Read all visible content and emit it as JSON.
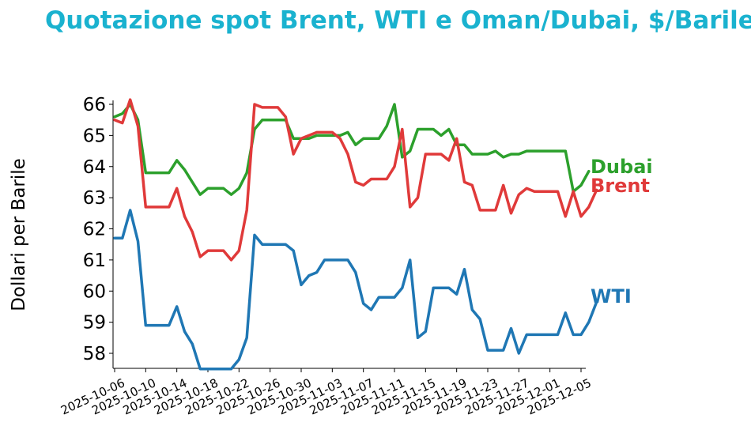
{
  "chart_data": {
    "type": "line",
    "title": "Quotazione spot Brent, WTI e Oman/Dubai, $/Barile",
    "xlabel": "",
    "ylabel": "Dollari per Barile",
    "ylim": [
      57.5,
      66.2
    ],
    "y_ticks": [
      58,
      59,
      60,
      61,
      62,
      63,
      64,
      65,
      66
    ],
    "x_ticks": [
      "2025-10-06",
      "2025-10-10",
      "2025-10-14",
      "2025-10-18",
      "2025-10-22",
      "2025-10-26",
      "2025-10-30",
      "2025-11-03",
      "2025-11-07",
      "2025-11-11",
      "2025-11-15",
      "2025-11-19",
      "2025-11-23",
      "2025-11-27",
      "2025-12-01",
      "2025-12-05"
    ],
    "x_range": [
      "2025-10-06",
      "2025-12-05"
    ],
    "grid": false,
    "legend": "labels at line ends (right)",
    "series": [
      {
        "name": "Dubai",
        "color": "#2ca02c",
        "points": [
          [
            "2025-10-06",
            65.6
          ],
          [
            "2025-10-07",
            65.7
          ],
          [
            "2025-10-08",
            66.0
          ],
          [
            "2025-10-09",
            65.5
          ],
          [
            "2025-10-10",
            63.8
          ],
          [
            "2025-10-13",
            63.8
          ],
          [
            "2025-10-14",
            64.2
          ],
          [
            "2025-10-15",
            63.9
          ],
          [
            "2025-10-16",
            63.5
          ],
          [
            "2025-10-17",
            63.1
          ],
          [
            "2025-10-18",
            63.3
          ],
          [
            "2025-10-20",
            63.3
          ],
          [
            "2025-10-21",
            63.1
          ],
          [
            "2025-10-22",
            63.3
          ],
          [
            "2025-10-23",
            63.8
          ],
          [
            "2025-10-24",
            65.2
          ],
          [
            "2025-10-25",
            65.5
          ],
          [
            "2025-10-28",
            65.5
          ],
          [
            "2025-10-29",
            64.9
          ],
          [
            "2025-10-31",
            64.9
          ],
          [
            "2025-11-01",
            65.0
          ],
          [
            "2025-11-04",
            65.0
          ],
          [
            "2025-11-05",
            65.1
          ],
          [
            "2025-11-06",
            64.7
          ],
          [
            "2025-11-07",
            64.9
          ],
          [
            "2025-11-09",
            64.9
          ],
          [
            "2025-11-10",
            65.3
          ],
          [
            "2025-11-11",
            66.0
          ],
          [
            "2025-11-12",
            64.3
          ],
          [
            "2025-11-13",
            64.5
          ],
          [
            "2025-11-14",
            65.2
          ],
          [
            "2025-11-16",
            65.2
          ],
          [
            "2025-11-17",
            65.0
          ],
          [
            "2025-11-18",
            65.2
          ],
          [
            "2025-11-19",
            64.7
          ],
          [
            "2025-11-20",
            64.7
          ],
          [
            "2025-11-21",
            64.4
          ],
          [
            "2025-11-23",
            64.4
          ],
          [
            "2025-11-24",
            64.5
          ],
          [
            "2025-11-25",
            64.3
          ],
          [
            "2025-11-26",
            64.4
          ],
          [
            "2025-11-27",
            64.4
          ],
          [
            "2025-11-28",
            64.5
          ],
          [
            "2025-12-03",
            64.5
          ],
          [
            "2025-12-04",
            63.2
          ],
          [
            "2025-12-05",
            63.4
          ],
          [
            "2025-12-06",
            63.85
          ]
        ]
      },
      {
        "name": "Brent",
        "color": "#e03a3a",
        "points": [
          [
            "2025-10-06",
            65.5
          ],
          [
            "2025-10-07",
            65.4
          ],
          [
            "2025-10-08",
            66.15
          ],
          [
            "2025-10-09",
            65.3
          ],
          [
            "2025-10-10",
            62.7
          ],
          [
            "2025-10-13",
            62.7
          ],
          [
            "2025-10-14",
            63.3
          ],
          [
            "2025-10-15",
            62.4
          ],
          [
            "2025-10-16",
            61.9
          ],
          [
            "2025-10-17",
            61.1
          ],
          [
            "2025-10-18",
            61.3
          ],
          [
            "2025-10-20",
            61.3
          ],
          [
            "2025-10-21",
            61.0
          ],
          [
            "2025-10-22",
            61.3
          ],
          [
            "2025-10-23",
            62.6
          ],
          [
            "2025-10-24",
            66.0
          ],
          [
            "2025-10-25",
            65.9
          ],
          [
            "2025-10-27",
            65.9
          ],
          [
            "2025-10-28",
            65.6
          ],
          [
            "2025-10-29",
            64.4
          ],
          [
            "2025-10-30",
            64.9
          ],
          [
            "2025-11-01",
            65.1
          ],
          [
            "2025-11-03",
            65.1
          ],
          [
            "2025-11-04",
            64.9
          ],
          [
            "2025-11-05",
            64.4
          ],
          [
            "2025-11-06",
            63.5
          ],
          [
            "2025-11-07",
            63.4
          ],
          [
            "2025-11-08",
            63.6
          ],
          [
            "2025-11-10",
            63.6
          ],
          [
            "2025-11-11",
            64.0
          ],
          [
            "2025-11-12",
            65.2
          ],
          [
            "2025-11-13",
            62.7
          ],
          [
            "2025-11-14",
            63.0
          ],
          [
            "2025-11-15",
            64.4
          ],
          [
            "2025-11-17",
            64.4
          ],
          [
            "2025-11-18",
            64.2
          ],
          [
            "2025-11-19",
            64.9
          ],
          [
            "2025-11-20",
            63.5
          ],
          [
            "2025-11-21",
            63.4
          ],
          [
            "2025-11-22",
            62.6
          ],
          [
            "2025-11-24",
            62.6
          ],
          [
            "2025-11-25",
            63.4
          ],
          [
            "2025-11-26",
            62.5
          ],
          [
            "2025-11-27",
            63.1
          ],
          [
            "2025-11-28",
            63.3
          ],
          [
            "2025-11-29",
            63.2
          ],
          [
            "2025-12-02",
            63.2
          ],
          [
            "2025-12-03",
            62.4
          ],
          [
            "2025-12-04",
            63.2
          ],
          [
            "2025-12-05",
            62.4
          ],
          [
            "2025-12-06",
            62.7
          ],
          [
            "2025-12-07",
            63.25
          ]
        ]
      },
      {
        "name": "WTI",
        "color": "#1f77b4",
        "points": [
          [
            "2025-10-06",
            61.7
          ],
          [
            "2025-10-07",
            61.7
          ],
          [
            "2025-10-08",
            62.6
          ],
          [
            "2025-10-09",
            61.6
          ],
          [
            "2025-10-10",
            58.9
          ],
          [
            "2025-10-13",
            58.9
          ],
          [
            "2025-10-14",
            59.5
          ],
          [
            "2025-10-15",
            58.7
          ],
          [
            "2025-10-16",
            58.3
          ],
          [
            "2025-10-17",
            57.5
          ],
          [
            "2025-10-21",
            57.5
          ],
          [
            "2025-10-22",
            57.8
          ],
          [
            "2025-10-23",
            58.5
          ],
          [
            "2025-10-24",
            61.8
          ],
          [
            "2025-10-25",
            61.5
          ],
          [
            "2025-10-28",
            61.5
          ],
          [
            "2025-10-29",
            61.3
          ],
          [
            "2025-10-30",
            60.2
          ],
          [
            "2025-10-31",
            60.5
          ],
          [
            "2025-11-01",
            60.6
          ],
          [
            "2025-11-02",
            61.0
          ],
          [
            "2025-11-05",
            61.0
          ],
          [
            "2025-11-06",
            60.6
          ],
          [
            "2025-11-07",
            59.6
          ],
          [
            "2025-11-08",
            59.4
          ],
          [
            "2025-11-09",
            59.8
          ],
          [
            "2025-11-11",
            59.8
          ],
          [
            "2025-11-12",
            60.1
          ],
          [
            "2025-11-13",
            61.0
          ],
          [
            "2025-11-14",
            58.5
          ],
          [
            "2025-11-15",
            58.7
          ],
          [
            "2025-11-16",
            60.1
          ],
          [
            "2025-11-18",
            60.1
          ],
          [
            "2025-11-19",
            59.9
          ],
          [
            "2025-11-20",
            60.7
          ],
          [
            "2025-11-21",
            59.4
          ],
          [
            "2025-11-22",
            59.1
          ],
          [
            "2025-11-23",
            58.1
          ],
          [
            "2025-11-25",
            58.1
          ],
          [
            "2025-11-26",
            58.8
          ],
          [
            "2025-11-27",
            58.0
          ],
          [
            "2025-11-28",
            58.6
          ],
          [
            "2025-12-02",
            58.6
          ],
          [
            "2025-12-03",
            59.3
          ],
          [
            "2025-12-04",
            58.6
          ],
          [
            "2025-12-05",
            58.6
          ],
          [
            "2025-12-06",
            59.0
          ],
          [
            "2025-12-07",
            59.65
          ]
        ]
      }
    ]
  }
}
